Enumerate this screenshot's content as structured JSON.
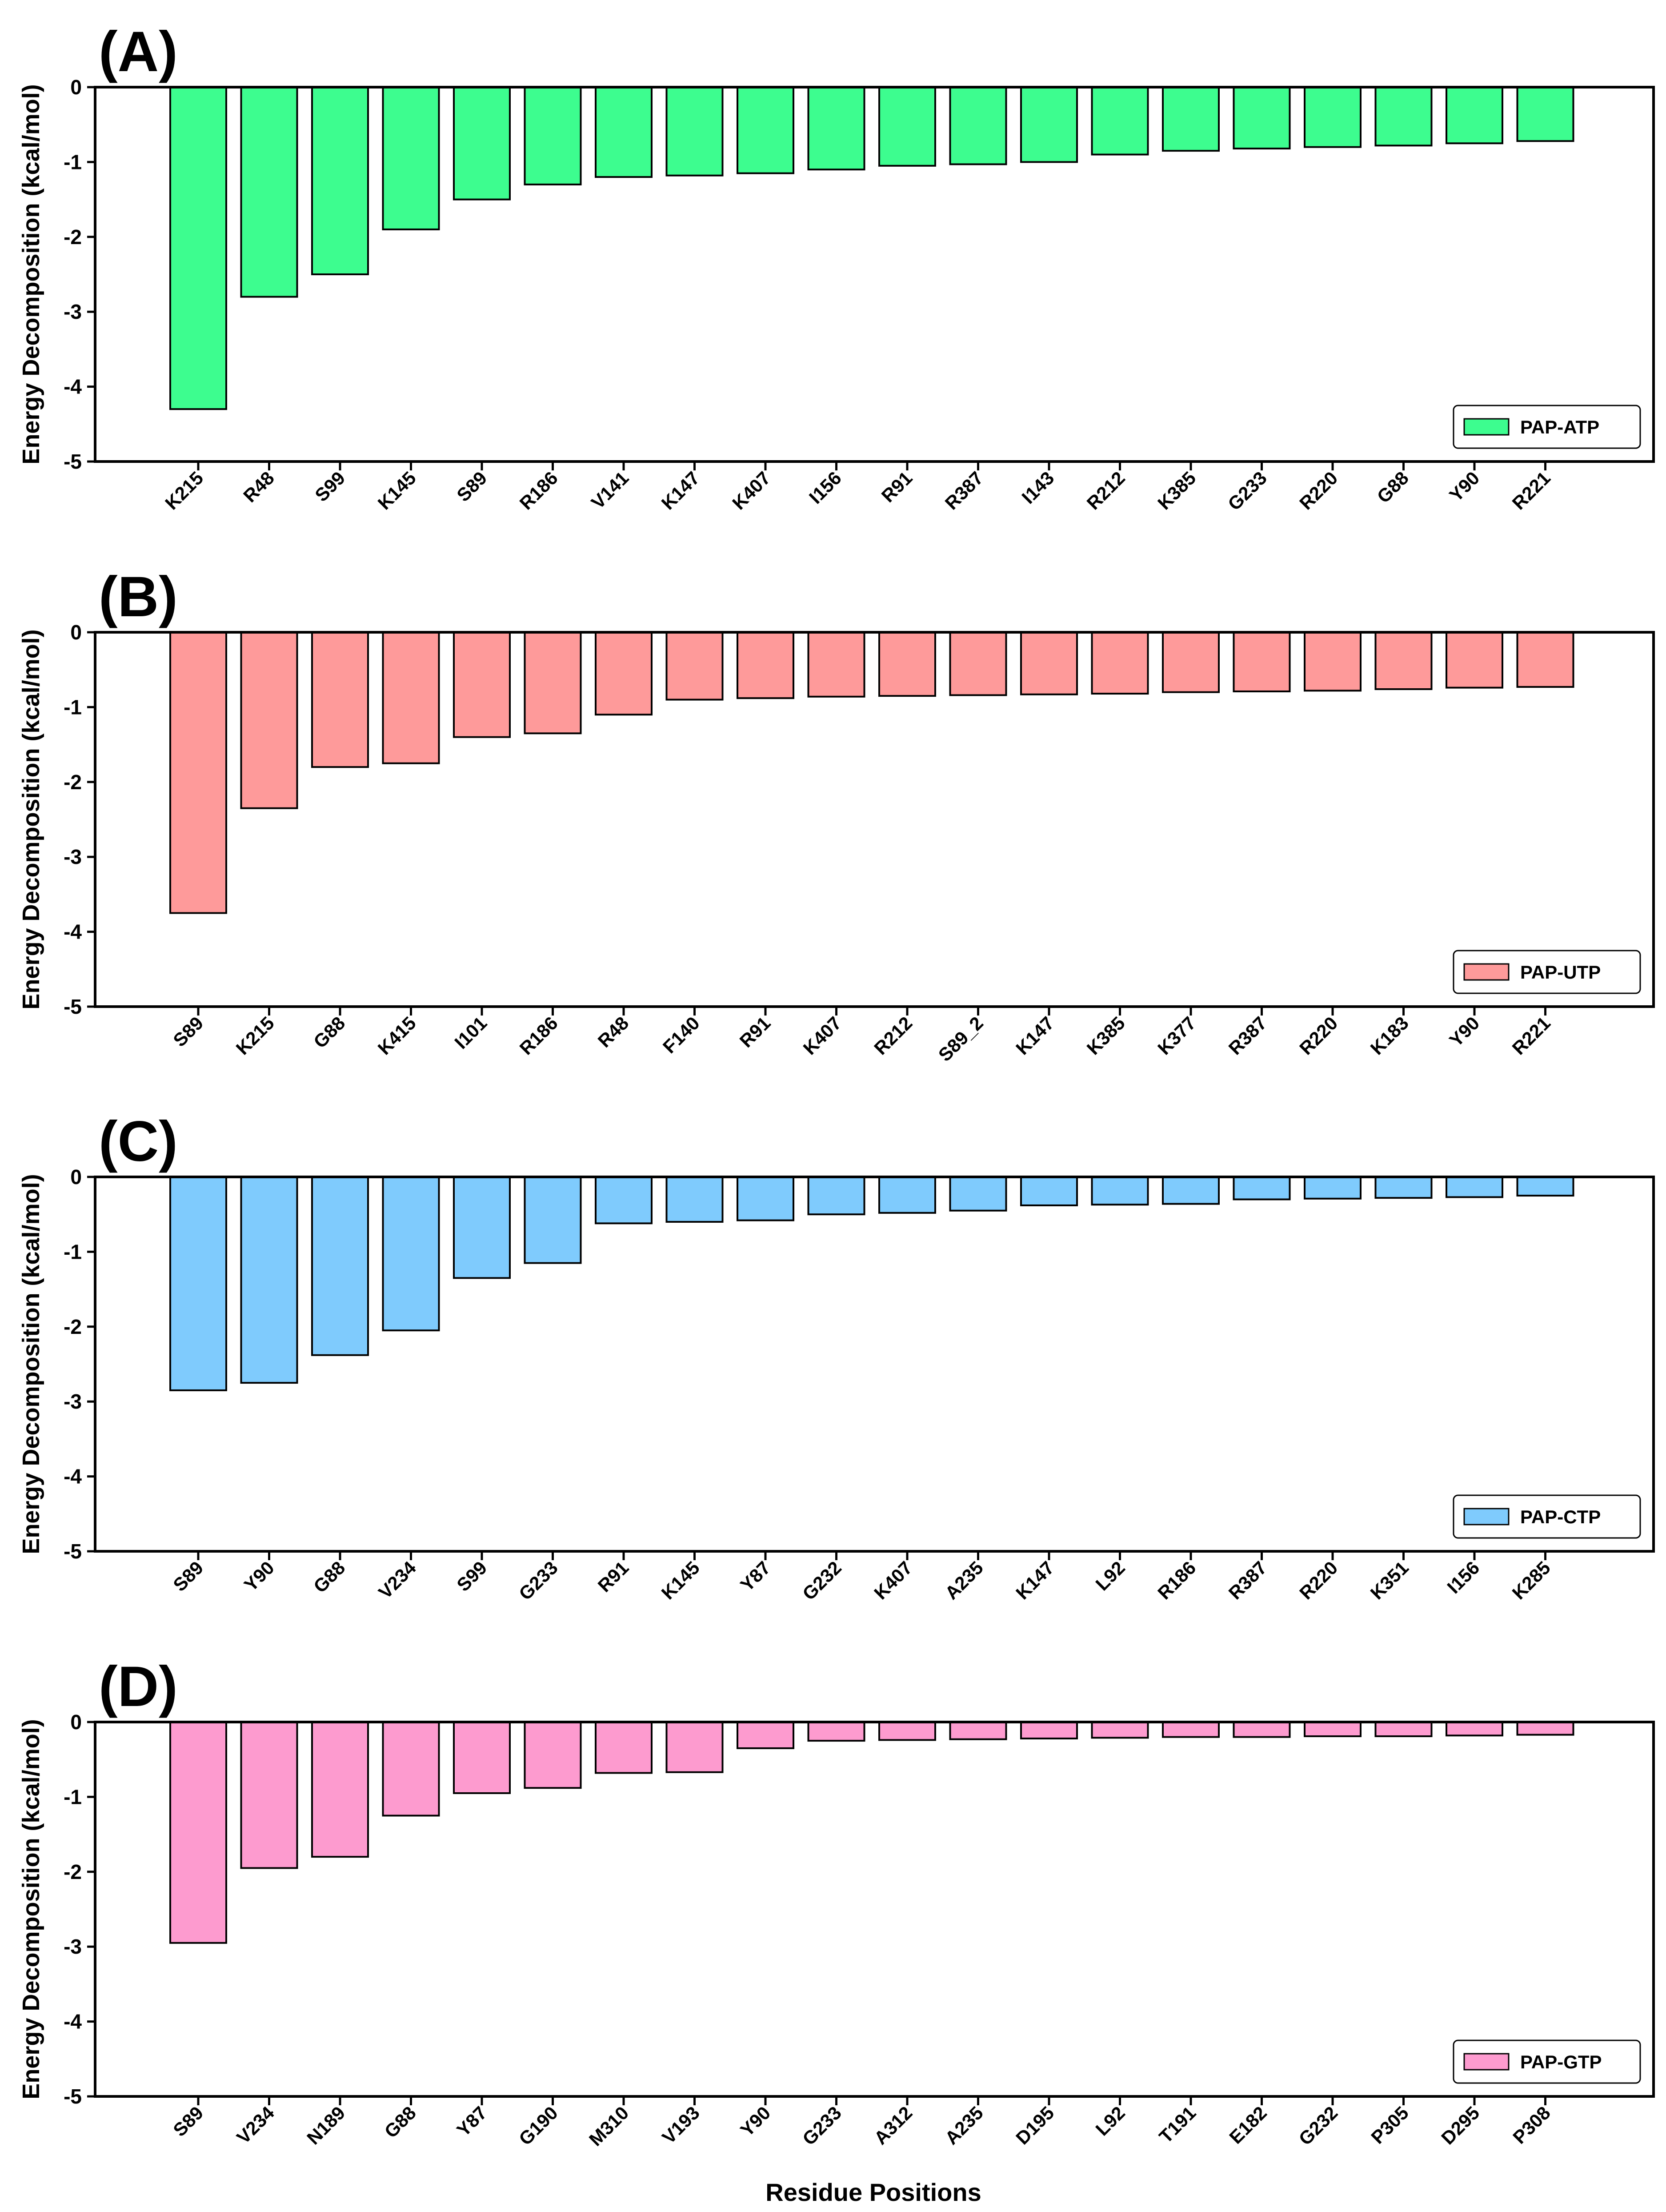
{
  "figure": {
    "xlabel": "Residue Positions"
  },
  "chart_data": [
    {
      "type": "bar",
      "panel_label": "(A)",
      "ylabel": "Energy Decomposition (kcal/mol)",
      "ylim": [
        -5,
        0
      ],
      "yticks": [
        "0",
        "-1",
        "-2",
        "-3",
        "-4",
        "-5"
      ],
      "legend": "PAP-ATP",
      "legend_position": "bottom-right",
      "color": "#3dfd8f",
      "categories": [
        "K215",
        "R48",
        "S99",
        "K145",
        "S89",
        "R186",
        "V141",
        "K147",
        "K407",
        "I156",
        "R91",
        "R387",
        "I143",
        "R212",
        "K385",
        "G233",
        "R220",
        "G88",
        "Y90",
        "R221"
      ],
      "values": [
        -4.3,
        -2.8,
        -2.5,
        -1.9,
        -1.5,
        -1.3,
        -1.2,
        -1.18,
        -1.15,
        -1.1,
        -1.05,
        -1.03,
        -1.0,
        -0.9,
        -0.85,
        -0.82,
        -0.8,
        -0.78,
        -0.75,
        -0.72
      ]
    },
    {
      "type": "bar",
      "panel_label": "(B)",
      "ylabel": "Energy Decomposition (kcal/mol)",
      "ylim": [
        -5,
        0
      ],
      "yticks": [
        "0",
        "-1",
        "-2",
        "-3",
        "-4",
        "-5"
      ],
      "legend": "PAP-UTP",
      "legend_position": "bottom-right",
      "color": "#fe9a9a",
      "categories": [
        "S89",
        "K215",
        "G88",
        "K415",
        "I101",
        "R186",
        "R48",
        "F140",
        "R91",
        "K407",
        "R212",
        "S89_2",
        "K147",
        "K385",
        "K377",
        "R387",
        "R220",
        "K183",
        "Y90",
        "R221"
      ],
      "values": [
        -3.75,
        -2.35,
        -1.8,
        -1.75,
        -1.4,
        -1.35,
        -1.1,
        -0.9,
        -0.88,
        -0.86,
        -0.85,
        -0.84,
        -0.83,
        -0.82,
        -0.8,
        -0.79,
        -0.78,
        -0.76,
        -0.74,
        -0.73
      ]
    },
    {
      "type": "bar",
      "panel_label": "(C)",
      "ylabel": "Energy Decomposition (kcal/mol)",
      "ylim": [
        -5,
        0
      ],
      "yticks": [
        "0",
        "-1",
        "-2",
        "-3",
        "-4",
        "-5"
      ],
      "legend": "PAP-CTP",
      "legend_position": "bottom-right",
      "color": "#7fcbfd",
      "categories": [
        "S89",
        "Y90",
        "G88",
        "V234",
        "S99",
        "G233",
        "R91",
        "K145",
        "Y87",
        "G232",
        "K407",
        "A235",
        "K147",
        "L92",
        "R186",
        "R387",
        "R220",
        "K351",
        "I156",
        "K285"
      ],
      "values": [
        -2.85,
        -2.75,
        -2.38,
        -2.05,
        -1.35,
        -1.15,
        -0.62,
        -0.6,
        -0.58,
        -0.5,
        -0.48,
        -0.45,
        -0.38,
        -0.37,
        -0.36,
        -0.3,
        -0.29,
        -0.28,
        -0.27,
        -0.25
      ]
    },
    {
      "type": "bar",
      "panel_label": "(D)",
      "ylabel": "Energy Decomposition (kcal/mol)",
      "ylim": [
        -5,
        0
      ],
      "yticks": [
        "0",
        "-1",
        "-2",
        "-3",
        "-4",
        "-5"
      ],
      "legend": "PAP-GTP",
      "legend_position": "bottom-right",
      "color": "#fd9bcf",
      "categories": [
        "S89",
        "V234",
        "N189",
        "G88",
        "Y87",
        "G190",
        "M310",
        "V193",
        "Y90",
        "G233",
        "A312",
        "A235",
        "D195",
        "L92",
        "T191",
        "E182",
        "G232",
        "P305",
        "D295",
        "P308"
      ],
      "values": [
        -2.95,
        -1.95,
        -1.8,
        -1.25,
        -0.95,
        -0.88,
        -0.68,
        -0.67,
        -0.35,
        -0.25,
        -0.24,
        -0.23,
        -0.22,
        -0.21,
        -0.2,
        -0.2,
        -0.19,
        -0.19,
        -0.18,
        -0.17
      ]
    }
  ]
}
